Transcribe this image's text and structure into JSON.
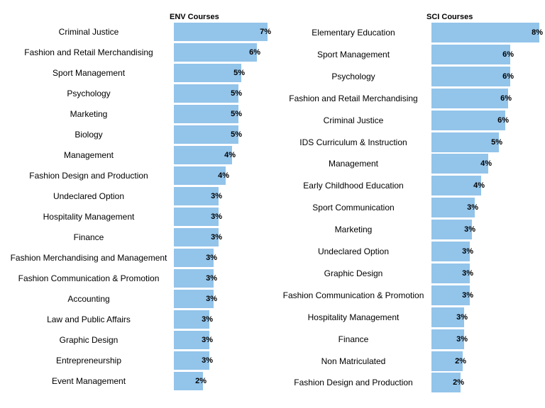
{
  "colors": {
    "bar": "#93c4ea"
  },
  "chart_data": [
    {
      "type": "bar",
      "orientation": "horizontal",
      "title": "ENV Courses",
      "value_unit": "%",
      "categories": [
        "Criminal Justice",
        "Fashion and Retail Merchandising",
        "Sport Management",
        "Psychology",
        "Marketing",
        "Biology",
        "Management",
        "Fashion Design and Production",
        "Undeclared Option",
        "Hospitality Management",
        "Finance",
        "Fashion Merchandising and Management",
        "Fashion Communication & Promotion",
        "Accounting",
        "Law and Public Affairs",
        "Graphic Design",
        "Entrepreneurship",
        "Event Management"
      ],
      "values": [
        7.1,
        6.3,
        5.1,
        4.9,
        4.9,
        4.9,
        4.4,
        3.9,
        3.4,
        3.4,
        3.4,
        3.0,
        3.0,
        3.0,
        2.7,
        2.7,
        2.7,
        2.2
      ],
      "labels": [
        "7%",
        "6%",
        "5%",
        "5%",
        "5%",
        "5%",
        "4%",
        "4%",
        "3%",
        "3%",
        "3%",
        "3%",
        "3%",
        "3%",
        "3%",
        "3%",
        "3%",
        "2%"
      ],
      "xlim": [
        0,
        7.1
      ],
      "grid": false,
      "legend": "none"
    },
    {
      "type": "bar",
      "orientation": "horizontal",
      "title": "SCI Courses",
      "value_unit": "%",
      "categories": [
        "Elementary Education",
        "Sport Management",
        "Psychology",
        "Fashion and Retail Merchandising",
        "Criminal Justice",
        "IDS Curriculum & Instruction",
        "Management",
        "Early Childhood Education",
        "Sport Communication",
        "Marketing",
        "Undeclared Option",
        "Graphic Design",
        "Fashion Communication & Promotion",
        "Hospitality Management",
        "Finance",
        "Non Matriculated",
        "Fashion Design and Production"
      ],
      "values": [
        8.2,
        6.0,
        6.0,
        5.8,
        5.6,
        5.1,
        4.3,
        3.8,
        3.3,
        3.1,
        2.9,
        2.9,
        2.9,
        2.5,
        2.5,
        2.4,
        2.2
      ],
      "labels": [
        "8%",
        "6%",
        "6%",
        "6%",
        "6%",
        "5%",
        "4%",
        "4%",
        "3%",
        "3%",
        "3%",
        "3%",
        "3%",
        "3%",
        "3%",
        "2%",
        "2%"
      ],
      "xlim": [
        0,
        8.2
      ],
      "grid": false,
      "legend": "none"
    }
  ]
}
